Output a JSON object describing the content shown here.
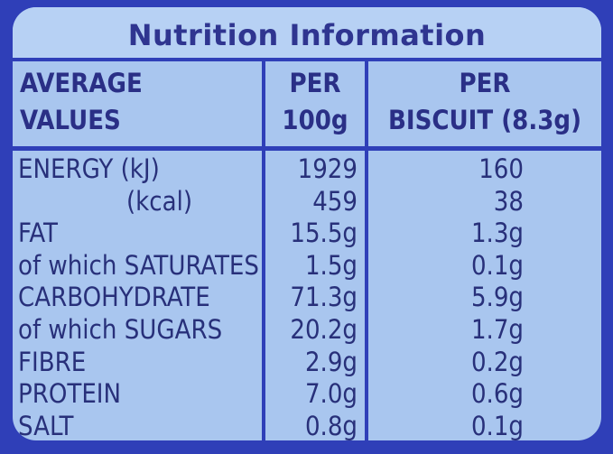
{
  "title": "Nutrition Information",
  "headers": {
    "col1_line1": "AVERAGE",
    "col1_line2": "VALUES",
    "col2_line1": "PER",
    "col2_line2": "100g",
    "col3_line1": "PER",
    "col3_line2": "BISCUIT (8.3g)"
  },
  "rows": [
    {
      "name": "ENERGY (kJ)",
      "per100": "1929",
      "perBiscuit": "160",
      "indent": false
    },
    {
      "name": "(kcal)",
      "per100": "459",
      "perBiscuit": "38",
      "indent": true
    },
    {
      "name": "FAT",
      "per100": "15.5g",
      "perBiscuit": "1.3g",
      "indent": false
    },
    {
      "name": "of which SATURATES",
      "per100": "1.5g",
      "perBiscuit": "0.1g",
      "indent": false
    },
    {
      "name": "CARBOHYDRATE",
      "per100": "71.3g",
      "perBiscuit": "5.9g",
      "indent": false
    },
    {
      "name": "of which SUGARS",
      "per100": "20.2g",
      "perBiscuit": "1.7g",
      "indent": false
    },
    {
      "name": "FIBRE",
      "per100": "2.9g",
      "perBiscuit": "0.2g",
      "indent": false
    },
    {
      "name": "PROTEIN",
      "per100": "7.0g",
      "perBiscuit": "0.6g",
      "indent": false
    },
    {
      "name": "SALT",
      "per100": "0.8g",
      "perBiscuit": "0.1g",
      "indent": false
    }
  ],
  "colors": {
    "packaging": "#2f3fb8",
    "panel": "#a9c6ef",
    "text": "#28307a"
  }
}
